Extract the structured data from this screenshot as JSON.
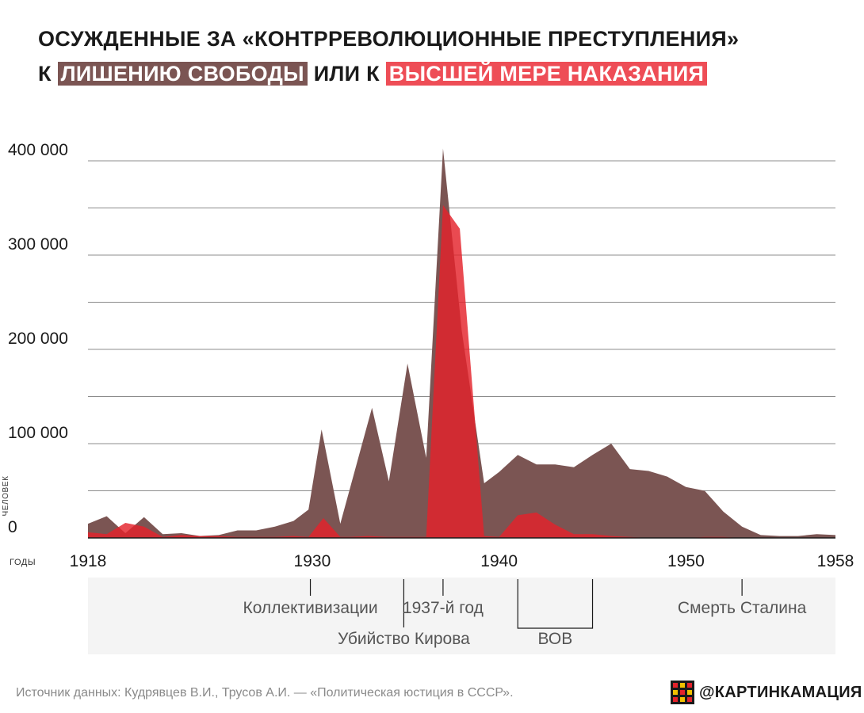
{
  "title": {
    "line1": "ОСУЖДЕННЫЕ ЗА «КОНТРРЕВОЛЮЦИОННЫЕ ПРЕСТУПЛЕНИЯ»",
    "line2_prefix": "К",
    "highlight_prison": "ЛИШЕНИЮ СВОБОДЫ",
    "line2_middle": "ИЛИ К",
    "highlight_death": "ВЫСШЕЙ МЕРЕ НАКАЗАНИЯ"
  },
  "colors": {
    "prison": "#7b5553",
    "death": "#e4222b",
    "death_highlight": "#ee4d56",
    "grid": "#8c8c8c",
    "events_panel": "#f4f4f4"
  },
  "chart_data": {
    "type": "area",
    "ylabel": "ЧЕЛОВЕК",
    "xlabel": "ГОДЫ",
    "ylim": [
      0,
      400000
    ],
    "xlim": [
      1918,
      1958
    ],
    "y_ticks": [
      {
        "value": 0,
        "label": "0"
      },
      {
        "value": 100000,
        "label": "100 000"
      },
      {
        "value": 200000,
        "label": "200 000"
      },
      {
        "value": 300000,
        "label": "300 000"
      },
      {
        "value": 400000,
        "label": "400 000"
      }
    ],
    "x_ticks": [
      {
        "value": 1918,
        "label": "1918"
      },
      {
        "value": 1930,
        "label": "1930"
      },
      {
        "value": 1940,
        "label": "1940"
      },
      {
        "value": 1950,
        "label": "1950"
      },
      {
        "value": 1958,
        "label": "1958"
      }
    ],
    "series": [
      {
        "name": "ЛИШЕНИЮ СВОБОДЫ",
        "color": "#7b5553",
        "points": [
          [
            1918,
            15000
          ],
          [
            1919,
            23000
          ],
          [
            1920,
            5000
          ],
          [
            1921,
            22000
          ],
          [
            1922,
            4000
          ],
          [
            1923,
            5000
          ],
          [
            1924,
            2000
          ],
          [
            1925,
            3000
          ],
          [
            1926,
            8000
          ],
          [
            1927,
            8000
          ],
          [
            1928,
            12000
          ],
          [
            1929,
            18000
          ],
          [
            1929.8,
            30000
          ],
          [
            1930.5,
            115000
          ],
          [
            1931.5,
            15000
          ],
          [
            1933.2,
            138000
          ],
          [
            1934.1,
            60000
          ],
          [
            1935.1,
            185000
          ],
          [
            1936.1,
            85000
          ],
          [
            1937,
            413000
          ],
          [
            1938,
            220000
          ],
          [
            1939.2,
            58000
          ],
          [
            1940,
            70000
          ],
          [
            1941,
            88000
          ],
          [
            1942,
            78000
          ],
          [
            1943,
            78000
          ],
          [
            1944,
            75000
          ],
          [
            1945,
            88000
          ],
          [
            1946,
            100000
          ],
          [
            1947,
            73000
          ],
          [
            1948,
            71000
          ],
          [
            1949,
            65000
          ],
          [
            1950,
            54000
          ],
          [
            1951,
            50000
          ],
          [
            1952,
            28000
          ],
          [
            1953,
            12000
          ],
          [
            1954,
            3000
          ],
          [
            1955,
            2000
          ],
          [
            1956,
            2000
          ],
          [
            1957,
            4000
          ],
          [
            1958,
            3000
          ]
        ]
      },
      {
        "name": "ВЫСШЕЙ МЕРЕ НАКАЗАНИЯ",
        "color": "#e4222b",
        "points": [
          [
            1918,
            6000
          ],
          [
            1919,
            4000
          ],
          [
            1920,
            16000
          ],
          [
            1921,
            12000
          ],
          [
            1922,
            1000
          ],
          [
            1923,
            3000
          ],
          [
            1924,
            2000
          ],
          [
            1925,
            2000
          ],
          [
            1926,
            1000
          ],
          [
            1927,
            1000
          ],
          [
            1928,
            1000
          ],
          [
            1929,
            2000
          ],
          [
            1929.8,
            1000
          ],
          [
            1930.6,
            21000
          ],
          [
            1931.5,
            1000
          ],
          [
            1932,
            1000
          ],
          [
            1933,
            2000
          ],
          [
            1934,
            1000
          ],
          [
            1935,
            1000
          ],
          [
            1936.1,
            1000
          ],
          [
            1937,
            353000
          ],
          [
            1937.9,
            328000
          ],
          [
            1939.2,
            2000
          ],
          [
            1940,
            1000
          ],
          [
            1941,
            24000
          ],
          [
            1942,
            27000
          ],
          [
            1943,
            14000
          ],
          [
            1944,
            4000
          ],
          [
            1945,
            4000
          ],
          [
            1946,
            2000
          ],
          [
            1947,
            1000
          ],
          [
            1948,
            0
          ],
          [
            1949,
            0
          ],
          [
            1950,
            0
          ],
          [
            1951,
            1000
          ],
          [
            1952,
            1000
          ],
          [
            1953,
            0
          ],
          [
            1958,
            0
          ]
        ]
      }
    ],
    "events": [
      {
        "label": "Коллективизации",
        "year": 1929.9,
        "row": 1
      },
      {
        "label": "Убийство Кирова",
        "year": 1934.9,
        "row": 2
      },
      {
        "label": "1937-й год",
        "year": 1937,
        "row": 1
      },
      {
        "label": "ВОВ",
        "start": 1941,
        "end": 1945,
        "row": 2
      },
      {
        "label": "Смерть Сталина",
        "year": 1953,
        "row": 1
      }
    ]
  },
  "footer": {
    "source": "Источник данных: Кудрявцев В.И., Трусов А.И. — «Политическая юстиция в СССР».",
    "brand": "@КАРТИНКАМАЦИЯ"
  }
}
